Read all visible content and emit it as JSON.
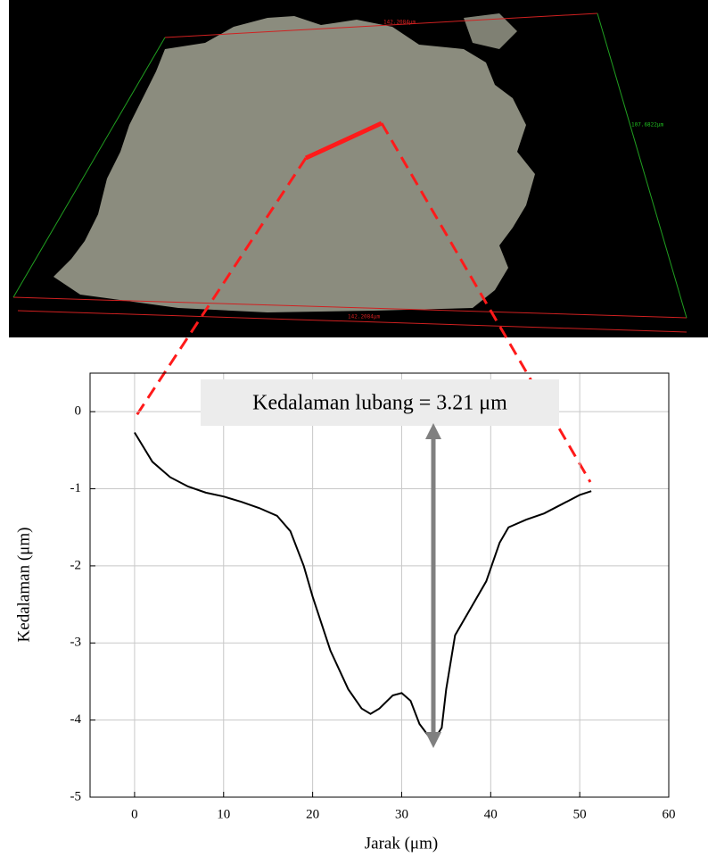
{
  "image_labels": {
    "top": "142.2084μm",
    "bottom": "142.2084μm",
    "right": "107.6822μm"
  },
  "chart_data": {
    "type": "line",
    "xlabel": "Jarak (μm)",
    "ylabel": "Kedalaman (μm)",
    "annotation": "Kedalaman lubang = 3.21 μm",
    "x": [
      0,
      2,
      4,
      6,
      8,
      10,
      12,
      14,
      16,
      17.5,
      19,
      20,
      22,
      24,
      25.5,
      26.5,
      27.5,
      29,
      30,
      31,
      32,
      33.5,
      34.5,
      35,
      36,
      38,
      39.5,
      41,
      42,
      44,
      46,
      48,
      50,
      51.3
    ],
    "series": [
      {
        "color": "#000000",
        "values": [
          -0.27,
          -0.65,
          -0.85,
          -0.97,
          -1.05,
          -1.1,
          -1.17,
          -1.25,
          -1.35,
          -1.55,
          -2.0,
          -2.4,
          -3.1,
          -3.6,
          -3.85,
          -3.92,
          -3.85,
          -3.68,
          -3.65,
          -3.75,
          -4.05,
          -4.28,
          -4.1,
          -3.6,
          -2.9,
          -2.5,
          -2.2,
          -1.7,
          -1.5,
          -1.4,
          -1.32,
          -1.2,
          -1.08,
          -1.03
        ]
      }
    ],
    "xlim": [
      -5,
      60
    ],
    "ylim": [
      -5,
      0.5
    ],
    "xticks": [
      0,
      10,
      20,
      30,
      40,
      50,
      60
    ],
    "yticks": [
      -5,
      -4,
      -3,
      -2,
      -1,
      0
    ],
    "grid": true
  }
}
